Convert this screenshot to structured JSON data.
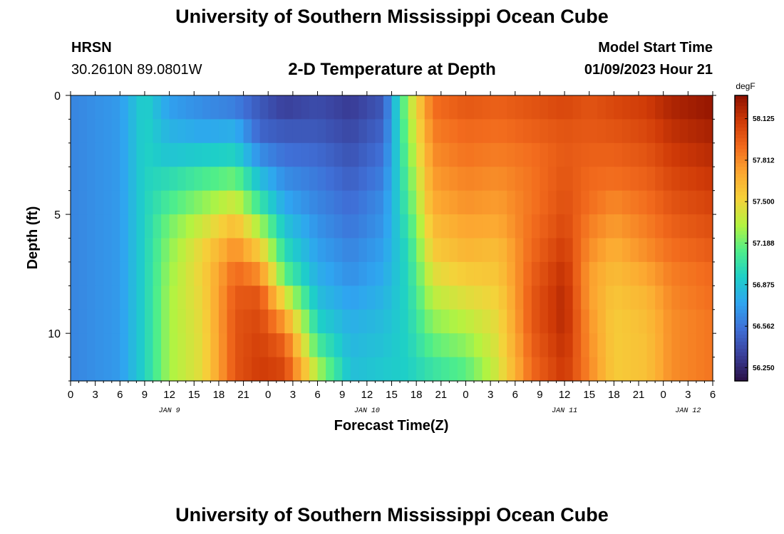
{
  "header": {
    "title_top": "University of Southern Mississippi Ocean Cube",
    "title_bottom": "University of Southern Mississippi Ocean Cube",
    "station": "HRSN",
    "coords": "30.2610N  89.0801W",
    "chart_title": "2-D Temperature at Depth",
    "model_start_label": "Model Start Time",
    "model_start_value": "01/09/2023 Hour 21"
  },
  "chart_data": {
    "type": "heatmap",
    "title": "2-D Temperature at Depth",
    "xlabel": "Forecast Time(Z)",
    "ylabel": "Depth (ft)",
    "x_tick_labels": [
      "0",
      "3",
      "6",
      "9",
      "12",
      "15",
      "18",
      "21",
      "0",
      "3",
      "6",
      "9",
      "12",
      "15",
      "18",
      "21",
      "0",
      "3",
      "6",
      "9",
      "12",
      "15",
      "18",
      "21",
      "0",
      "3",
      "6"
    ],
    "date_labels": [
      {
        "label": "JAN 9",
        "x_hours_from_start": 12
      },
      {
        "label": "JAN 10",
        "x_hours_from_start": 36
      },
      {
        "label": "JAN 11",
        "x_hours_from_start": 60
      },
      {
        "label": "JAN 12",
        "x_hours_from_start": 75
      }
    ],
    "x_range_hours": [
      0,
      78
    ],
    "y_ticks": [
      0,
      5,
      10
    ],
    "ylim": [
      0,
      12
    ],
    "colorbar": {
      "unit": "degF",
      "tick_labels": [
        "58.125",
        "57.812",
        "57.500",
        "57.188",
        "56.875",
        "56.562",
        "56.250"
      ],
      "range": [
        56.15,
        58.3
      ],
      "colormap": [
        "#2a1046",
        "#3a3f9a",
        "#3f6fd6",
        "#2fa5f0",
        "#1ecfc8",
        "#4fee8a",
        "#b3f341",
        "#f5d23a",
        "#fca831",
        "#f26b1d",
        "#cf3a07",
        "#8c1000"
      ]
    },
    "depths_ft": [
      0.5,
      1.5,
      2.5,
      3.5,
      4.5,
      5.5,
      6.5,
      7.5,
      8.5,
      9.5,
      10.5,
      11.5
    ],
    "time_knots_hours": [
      0,
      6,
      9,
      12,
      16,
      20,
      23,
      26,
      30,
      34,
      38,
      41,
      44,
      48,
      52,
      56,
      60,
      63,
      66,
      70,
      73,
      78
    ],
    "values_rows": [
      [
        56.62,
        56.7,
        56.95,
        56.72,
        56.65,
        56.6,
        56.45,
        56.35,
        56.4,
        56.33,
        56.45,
        57.3,
        57.9,
        57.98,
        57.95,
        58.0,
        58.05,
        58.0,
        58.05,
        58.1,
        58.2,
        58.27
      ],
      [
        56.62,
        56.7,
        56.95,
        56.8,
        56.75,
        56.78,
        56.5,
        56.45,
        56.45,
        56.38,
        56.5,
        57.25,
        57.85,
        57.92,
        57.9,
        57.95,
        58.0,
        57.98,
        58.0,
        58.05,
        58.15,
        58.22
      ],
      [
        56.62,
        56.7,
        56.95,
        56.88,
        56.92,
        56.95,
        56.65,
        56.55,
        56.52,
        56.43,
        56.55,
        57.2,
        57.8,
        57.88,
        57.85,
        57.9,
        57.98,
        57.95,
        57.95,
        58.0,
        58.1,
        58.17
      ],
      [
        56.62,
        56.7,
        56.95,
        57.0,
        57.1,
        57.18,
        56.85,
        56.65,
        56.58,
        56.48,
        56.6,
        57.15,
        57.75,
        57.83,
        57.8,
        57.88,
        58.0,
        57.92,
        57.9,
        57.95,
        58.05,
        58.12
      ],
      [
        56.62,
        56.7,
        56.95,
        57.1,
        57.25,
        57.4,
        57.05,
        56.75,
        56.62,
        56.53,
        56.65,
        57.1,
        57.7,
        57.78,
        57.75,
        57.88,
        58.02,
        57.9,
        57.82,
        57.9,
        58.0,
        58.07
      ],
      [
        56.62,
        56.7,
        56.95,
        57.2,
        57.4,
        57.62,
        57.3,
        56.88,
        56.67,
        56.57,
        56.68,
        57.05,
        57.62,
        57.72,
        57.7,
        57.9,
        58.05,
        57.85,
        57.75,
        57.85,
        57.95,
        58.02
      ],
      [
        56.62,
        56.7,
        56.95,
        57.25,
        57.5,
        57.8,
        57.55,
        57.0,
        56.72,
        56.62,
        56.72,
        57.0,
        57.55,
        57.65,
        57.62,
        57.92,
        58.1,
        57.8,
        57.68,
        57.8,
        57.9,
        57.97
      ],
      [
        56.62,
        56.7,
        56.95,
        57.28,
        57.52,
        57.92,
        57.8,
        57.15,
        56.78,
        56.66,
        56.76,
        56.98,
        57.45,
        57.55,
        57.58,
        57.95,
        58.15,
        57.75,
        57.62,
        57.72,
        57.85,
        57.92
      ],
      [
        56.62,
        56.7,
        56.95,
        57.3,
        57.5,
        57.98,
        58.0,
        57.45,
        56.85,
        56.72,
        56.8,
        56.97,
        57.35,
        57.45,
        57.52,
        57.98,
        58.18,
        57.75,
        57.58,
        57.65,
        57.82,
        57.9
      ],
      [
        56.62,
        56.7,
        56.95,
        57.3,
        57.48,
        58.0,
        58.05,
        57.75,
        56.95,
        56.78,
        56.84,
        56.96,
        57.25,
        57.35,
        57.48,
        57.98,
        58.18,
        57.78,
        57.55,
        57.62,
        57.8,
        57.88
      ],
      [
        56.62,
        56.7,
        56.95,
        57.3,
        57.47,
        58.0,
        58.08,
        57.95,
        57.1,
        56.82,
        56.87,
        56.95,
        57.15,
        57.25,
        57.45,
        57.95,
        58.15,
        57.8,
        57.55,
        57.6,
        57.8,
        57.88
      ],
      [
        56.62,
        56.7,
        56.95,
        57.3,
        57.47,
        58.0,
        58.1,
        58.05,
        57.3,
        56.85,
        56.9,
        56.94,
        57.05,
        57.15,
        57.42,
        57.92,
        58.12,
        57.82,
        57.55,
        57.6,
        57.8,
        57.88
      ]
    ]
  }
}
